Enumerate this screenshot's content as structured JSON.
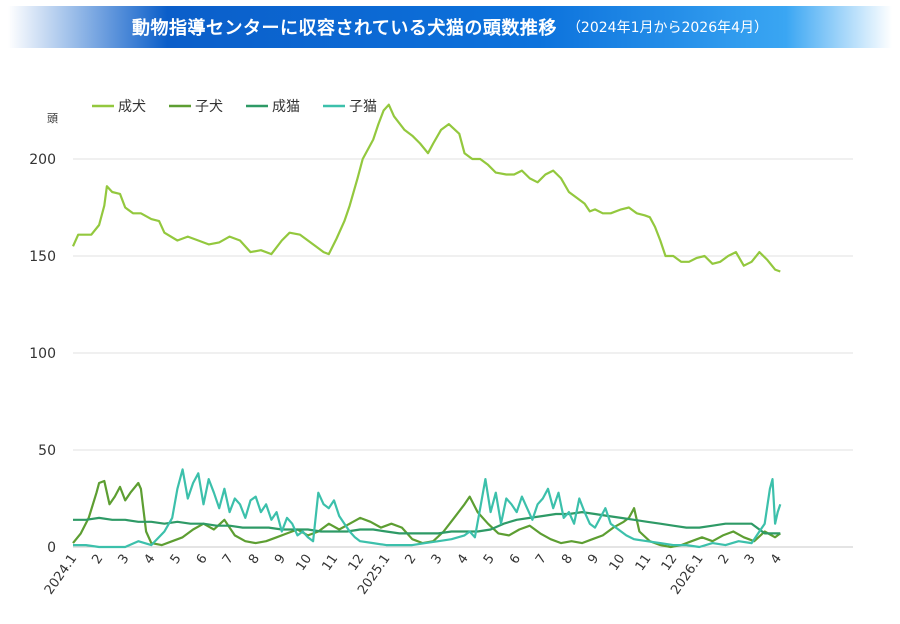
{
  "header": {
    "title": "動物指導センターに収容されている犬猫の頭数推移",
    "subtitle": "（2024年1月から2026年4月）"
  },
  "chart_data": {
    "type": "line",
    "ylabel": "頭",
    "ylim": [
      0,
      230
    ],
    "yticks": [
      0,
      50,
      100,
      150,
      200
    ],
    "x_tick_labels": [
      "2024.1",
      "2",
      "3",
      "4",
      "5",
      "6",
      "7",
      "8",
      "9",
      "10",
      "11",
      "12",
      "2025.1",
      "2",
      "3",
      "4",
      "5",
      "6",
      "7",
      "8",
      "9",
      "10",
      "11",
      "12",
      "2026.1",
      "2",
      "3",
      "4"
    ],
    "legend_position": "top-left",
    "grid": true,
    "series": [
      {
        "name": "成犬",
        "color": "#93c83e",
        "points": [
          [
            0,
            155
          ],
          [
            0.2,
            161
          ],
          [
            0.7,
            161
          ],
          [
            1,
            166
          ],
          [
            1.2,
            176
          ],
          [
            1.3,
            186
          ],
          [
            1.5,
            183
          ],
          [
            1.8,
            182
          ],
          [
            2,
            175
          ],
          [
            2.3,
            172
          ],
          [
            2.6,
            172
          ],
          [
            3,
            169
          ],
          [
            3.3,
            168
          ],
          [
            3.5,
            162
          ],
          [
            4,
            158
          ],
          [
            4.4,
            160
          ],
          [
            4.8,
            158
          ],
          [
            5.2,
            156
          ],
          [
            5.6,
            157
          ],
          [
            6,
            160
          ],
          [
            6.4,
            158
          ],
          [
            6.8,
            152
          ],
          [
            7.2,
            153
          ],
          [
            7.6,
            151
          ],
          [
            8,
            158
          ],
          [
            8.3,
            162
          ],
          [
            8.7,
            161
          ],
          [
            9,
            158
          ],
          [
            9.3,
            155
          ],
          [
            9.6,
            152
          ],
          [
            9.8,
            151
          ],
          [
            10.1,
            159
          ],
          [
            10.4,
            168
          ],
          [
            10.6,
            176
          ],
          [
            10.9,
            190
          ],
          [
            11.1,
            200
          ],
          [
            11.5,
            210
          ],
          [
            11.7,
            218
          ],
          [
            11.9,
            225
          ],
          [
            12.1,
            228
          ],
          [
            12.3,
            222
          ],
          [
            12.7,
            215
          ],
          [
            13.0,
            212
          ],
          [
            13.3,
            208
          ],
          [
            13.6,
            203
          ],
          [
            13.8,
            208
          ],
          [
            14.1,
            215
          ],
          [
            14.4,
            218
          ],
          [
            14.8,
            213
          ],
          [
            15.0,
            203
          ],
          [
            15.3,
            200
          ],
          [
            15.6,
            200
          ],
          [
            15.9,
            197
          ],
          [
            16.2,
            193
          ],
          [
            16.6,
            192
          ],
          [
            16.9,
            192
          ],
          [
            17.2,
            194
          ],
          [
            17.5,
            190
          ],
          [
            17.8,
            188
          ],
          [
            18.1,
            192
          ],
          [
            18.4,
            194
          ],
          [
            18.7,
            190
          ],
          [
            19.0,
            183
          ],
          [
            19.3,
            180
          ],
          [
            19.6,
            177
          ],
          [
            19.8,
            173
          ],
          [
            20.0,
            174
          ],
          [
            20.3,
            172
          ],
          [
            20.6,
            172
          ],
          [
            21.0,
            174
          ],
          [
            21.3,
            175
          ],
          [
            21.6,
            172
          ],
          [
            21.9,
            171
          ],
          [
            22.1,
            170
          ],
          [
            22.3,
            165
          ],
          [
            22.5,
            158
          ],
          [
            22.7,
            150
          ],
          [
            23.0,
            150
          ],
          [
            23.3,
            147
          ],
          [
            23.6,
            147
          ],
          [
            23.9,
            149
          ],
          [
            24.2,
            150
          ],
          [
            24.5,
            146
          ],
          [
            24.8,
            147
          ],
          [
            25.1,
            150
          ],
          [
            25.4,
            152
          ],
          [
            25.7,
            145
          ],
          [
            26.0,
            147
          ],
          [
            26.3,
            152
          ],
          [
            26.6,
            148
          ],
          [
            26.9,
            143
          ],
          [
            27.1,
            142
          ]
        ]
      },
      {
        "name": "子犬",
        "color": "#5d9e32",
        "points": [
          [
            0,
            2
          ],
          [
            0.3,
            7
          ],
          [
            0.6,
            15
          ],
          [
            0.9,
            28
          ],
          [
            1.0,
            33
          ],
          [
            1.2,
            34
          ],
          [
            1.4,
            22
          ],
          [
            1.6,
            26
          ],
          [
            1.8,
            31
          ],
          [
            2.0,
            24
          ],
          [
            2.2,
            28
          ],
          [
            2.5,
            33
          ],
          [
            2.6,
            30
          ],
          [
            2.8,
            8
          ],
          [
            3.0,
            2
          ],
          [
            3.4,
            1
          ],
          [
            3.8,
            3
          ],
          [
            4.2,
            5
          ],
          [
            4.6,
            9
          ],
          [
            5.0,
            12
          ],
          [
            5.4,
            9
          ],
          [
            5.8,
            14
          ],
          [
            6.2,
            6
          ],
          [
            6.6,
            3
          ],
          [
            7.0,
            2
          ],
          [
            7.4,
            3
          ],
          [
            7.8,
            5
          ],
          [
            8.2,
            7
          ],
          [
            8.6,
            9
          ],
          [
            9.0,
            6
          ],
          [
            9.4,
            8
          ],
          [
            9.8,
            12
          ],
          [
            10.2,
            9
          ],
          [
            10.6,
            12
          ],
          [
            11.0,
            15
          ],
          [
            11.4,
            13
          ],
          [
            11.8,
            10
          ],
          [
            12.2,
            12
          ],
          [
            12.6,
            10
          ],
          [
            13.0,
            4
          ],
          [
            13.4,
            2
          ],
          [
            13.8,
            3
          ],
          [
            14.2,
            8
          ],
          [
            14.6,
            15
          ],
          [
            15.0,
            22
          ],
          [
            15.2,
            26
          ],
          [
            15.5,
            18
          ],
          [
            15.9,
            12
          ],
          [
            16.3,
            7
          ],
          [
            16.7,
            6
          ],
          [
            17.1,
            9
          ],
          [
            17.5,
            11
          ],
          [
            17.9,
            7
          ],
          [
            18.3,
            4
          ],
          [
            18.7,
            2
          ],
          [
            19.1,
            3
          ],
          [
            19.5,
            2
          ],
          [
            19.9,
            4
          ],
          [
            20.3,
            6
          ],
          [
            20.7,
            10
          ],
          [
            21.1,
            13
          ],
          [
            21.3,
            15
          ],
          [
            21.5,
            20
          ],
          [
            21.7,
            8
          ],
          [
            22.1,
            3
          ],
          [
            22.5,
            1
          ],
          [
            22.9,
            0
          ],
          [
            23.3,
            1
          ],
          [
            23.7,
            3
          ],
          [
            24.1,
            5
          ],
          [
            24.5,
            3
          ],
          [
            24.9,
            6
          ],
          [
            25.3,
            8
          ],
          [
            25.7,
            5
          ],
          [
            26.1,
            3
          ],
          [
            26.5,
            8
          ],
          [
            26.9,
            5
          ],
          [
            27.1,
            7
          ]
        ]
      },
      {
        "name": "成猫",
        "color": "#2e9a66",
        "points": [
          [
            0,
            14
          ],
          [
            0.5,
            14
          ],
          [
            1.0,
            15
          ],
          [
            1.5,
            14
          ],
          [
            2.0,
            14
          ],
          [
            2.5,
            13
          ],
          [
            3.0,
            13
          ],
          [
            3.5,
            12
          ],
          [
            4.0,
            13
          ],
          [
            4.5,
            12
          ],
          [
            5.0,
            12
          ],
          [
            5.5,
            11
          ],
          [
            6.0,
            11
          ],
          [
            6.5,
            10
          ],
          [
            7.0,
            10
          ],
          [
            7.5,
            10
          ],
          [
            8.0,
            9
          ],
          [
            8.5,
            9
          ],
          [
            9.0,
            9
          ],
          [
            9.5,
            8
          ],
          [
            10.0,
            8
          ],
          [
            10.5,
            8
          ],
          [
            11.0,
            9
          ],
          [
            11.5,
            9
          ],
          [
            12.0,
            8
          ],
          [
            12.5,
            7
          ],
          [
            13.0,
            7
          ],
          [
            13.5,
            7
          ],
          [
            14.0,
            7
          ],
          [
            14.5,
            8
          ],
          [
            15.0,
            8
          ],
          [
            15.5,
            8
          ],
          [
            16.0,
            9
          ],
          [
            16.5,
            12
          ],
          [
            17.0,
            14
          ],
          [
            17.5,
            15
          ],
          [
            18.0,
            16
          ],
          [
            18.5,
            17
          ],
          [
            19.0,
            17
          ],
          [
            19.5,
            18
          ],
          [
            20.0,
            17
          ],
          [
            20.5,
            16
          ],
          [
            21.0,
            15
          ],
          [
            21.5,
            14
          ],
          [
            22.0,
            13
          ],
          [
            22.5,
            12
          ],
          [
            23.0,
            11
          ],
          [
            23.5,
            10
          ],
          [
            24.0,
            10
          ],
          [
            24.5,
            11
          ],
          [
            25.0,
            12
          ],
          [
            25.5,
            12
          ],
          [
            26.0,
            12
          ],
          [
            26.5,
            7
          ],
          [
            27.1,
            7
          ]
        ]
      },
      {
        "name": "子猫",
        "color": "#3cc0ab",
        "points": [
          [
            0,
            1
          ],
          [
            0.5,
            1
          ],
          [
            1.0,
            0
          ],
          [
            1.5,
            0
          ],
          [
            2.0,
            0
          ],
          [
            2.5,
            3
          ],
          [
            3.0,
            1
          ],
          [
            3.5,
            8
          ],
          [
            3.8,
            15
          ],
          [
            4.0,
            30
          ],
          [
            4.2,
            40
          ],
          [
            4.4,
            25
          ],
          [
            4.6,
            33
          ],
          [
            4.8,
            38
          ],
          [
            5.0,
            22
          ],
          [
            5.2,
            35
          ],
          [
            5.4,
            28
          ],
          [
            5.6,
            20
          ],
          [
            5.8,
            30
          ],
          [
            6.0,
            18
          ],
          [
            6.2,
            25
          ],
          [
            6.4,
            22
          ],
          [
            6.6,
            15
          ],
          [
            6.8,
            24
          ],
          [
            7.0,
            26
          ],
          [
            7.2,
            18
          ],
          [
            7.4,
            22
          ],
          [
            7.6,
            14
          ],
          [
            7.8,
            18
          ],
          [
            8.0,
            8
          ],
          [
            8.2,
            15
          ],
          [
            8.4,
            12
          ],
          [
            8.6,
            6
          ],
          [
            8.8,
            8
          ],
          [
            9.0,
            5
          ],
          [
            9.2,
            3
          ],
          [
            9.4,
            28
          ],
          [
            9.6,
            22
          ],
          [
            9.8,
            20
          ],
          [
            10.0,
            24
          ],
          [
            10.2,
            16
          ],
          [
            10.4,
            12
          ],
          [
            10.6,
            8
          ],
          [
            10.8,
            5
          ],
          [
            11.0,
            3
          ],
          [
            11.5,
            2
          ],
          [
            12.0,
            1
          ],
          [
            12.5,
            1
          ],
          [
            13.0,
            1
          ],
          [
            13.5,
            2
          ],
          [
            14.0,
            3
          ],
          [
            14.5,
            4
          ],
          [
            15.0,
            6
          ],
          [
            15.2,
            8
          ],
          [
            15.4,
            5
          ],
          [
            15.6,
            20
          ],
          [
            15.8,
            35
          ],
          [
            16.0,
            18
          ],
          [
            16.2,
            28
          ],
          [
            16.4,
            12
          ],
          [
            16.6,
            25
          ],
          [
            16.8,
            22
          ],
          [
            17.0,
            18
          ],
          [
            17.2,
            26
          ],
          [
            17.4,
            20
          ],
          [
            17.6,
            14
          ],
          [
            17.8,
            22
          ],
          [
            18.0,
            25
          ],
          [
            18.2,
            30
          ],
          [
            18.4,
            20
          ],
          [
            18.6,
            28
          ],
          [
            18.8,
            15
          ],
          [
            19.0,
            18
          ],
          [
            19.2,
            12
          ],
          [
            19.4,
            25
          ],
          [
            19.6,
            18
          ],
          [
            19.8,
            12
          ],
          [
            20.0,
            10
          ],
          [
            20.2,
            15
          ],
          [
            20.4,
            20
          ],
          [
            20.6,
            12
          ],
          [
            20.8,
            10
          ],
          [
            21.0,
            8
          ],
          [
            21.2,
            6
          ],
          [
            21.5,
            4
          ],
          [
            22.0,
            3
          ],
          [
            22.5,
            2
          ],
          [
            23.0,
            1
          ],
          [
            23.5,
            1
          ],
          [
            24.0,
            0
          ],
          [
            24.5,
            2
          ],
          [
            25.0,
            1
          ],
          [
            25.5,
            3
          ],
          [
            26.0,
            2
          ],
          [
            26.3,
            8
          ],
          [
            26.5,
            12
          ],
          [
            26.7,
            30
          ],
          [
            26.8,
            35
          ],
          [
            26.9,
            12
          ],
          [
            27.0,
            18
          ],
          [
            27.1,
            22
          ]
        ]
      }
    ]
  }
}
